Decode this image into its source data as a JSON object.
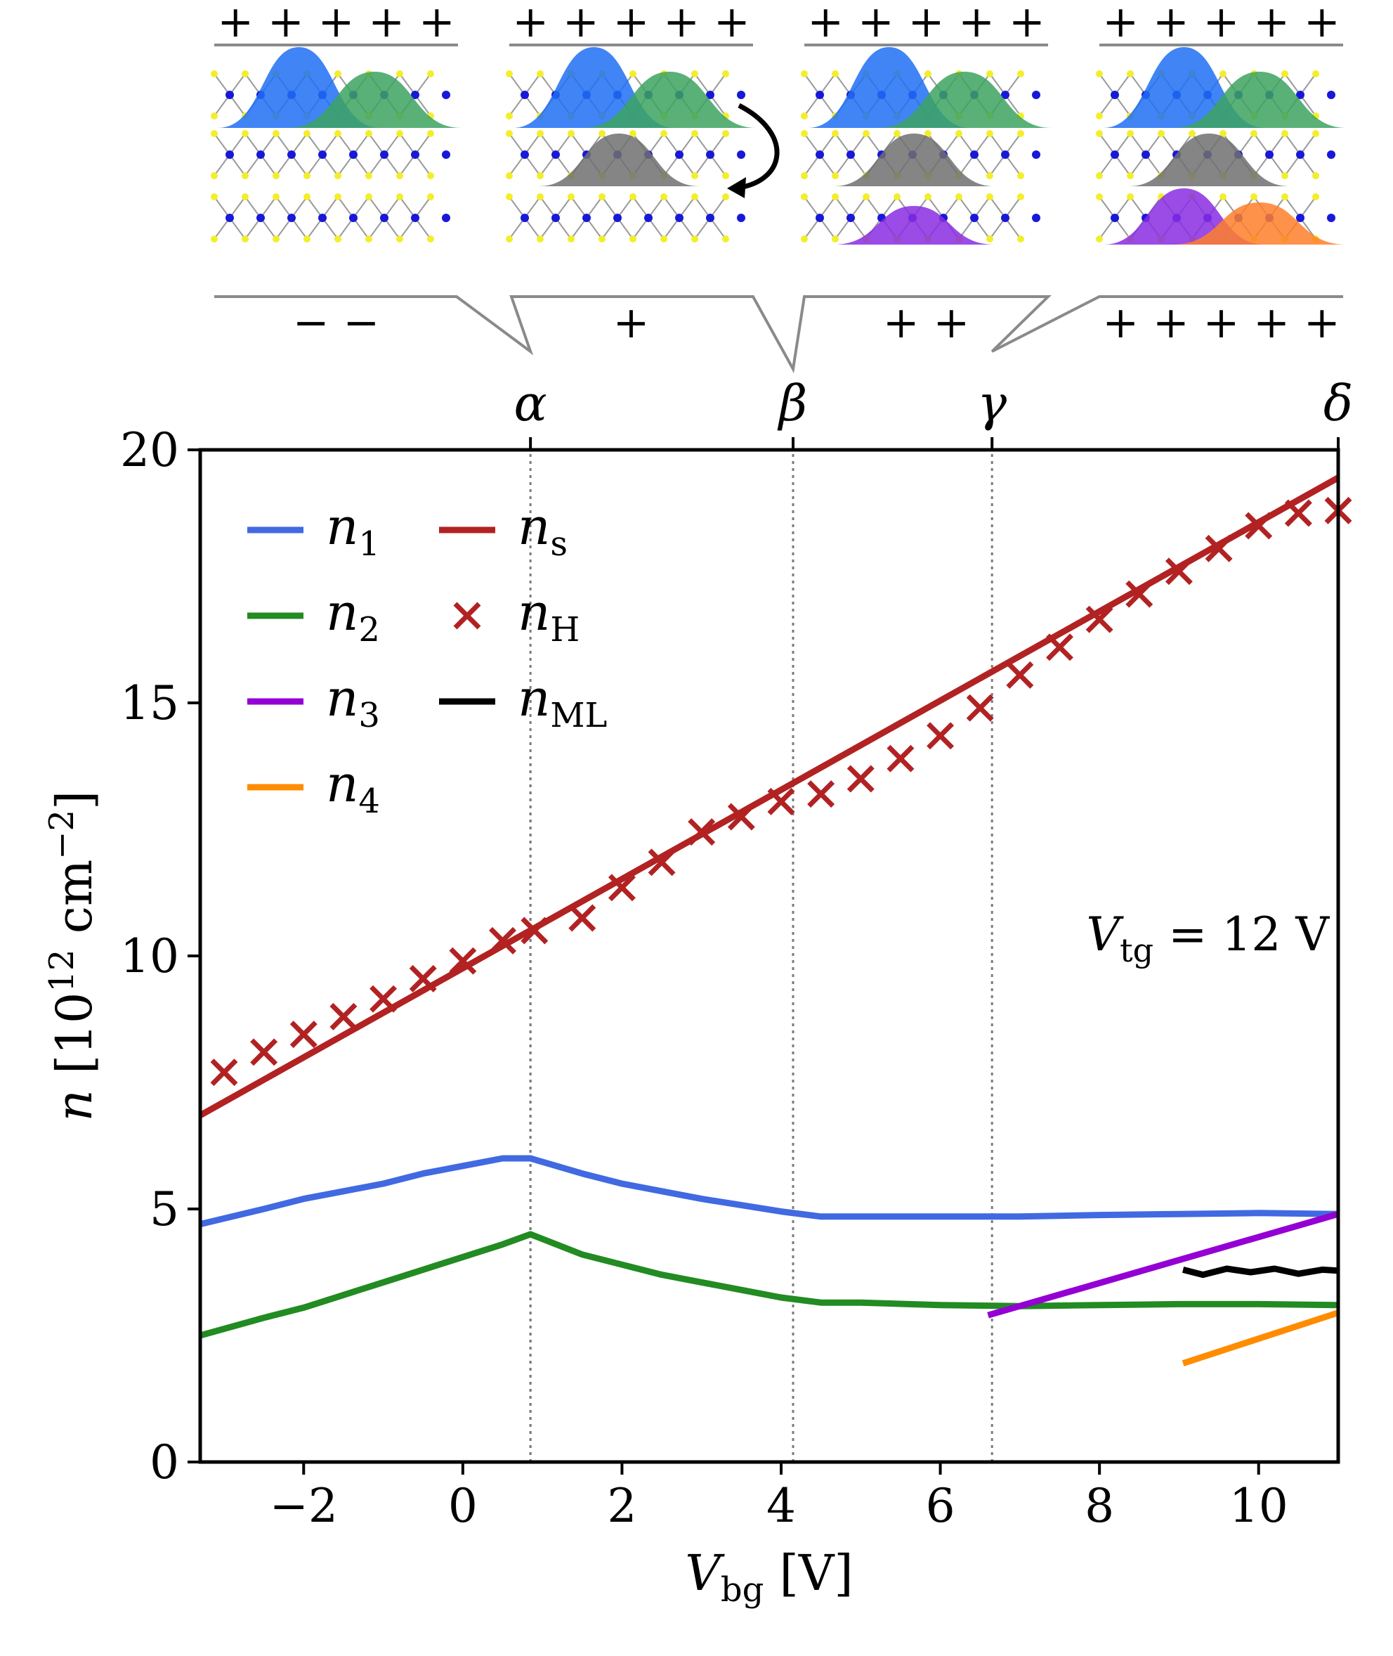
{
  "chart_data": {
    "type": "line",
    "title": "",
    "annotation": "V_tg = 12 V",
    "annotation_parts": {
      "var": "V",
      "sub": "tg",
      "rest": " = 12 V"
    },
    "xlabel": {
      "var": "V",
      "sub": "bg",
      "unit": " [V]"
    },
    "ylabel": {
      "var": "n",
      "unit": " [10",
      "exp": "12",
      "unit2": " cm",
      "exp2": "−2",
      "close": "]"
    },
    "xlim": [
      -3.3,
      11
    ],
    "ylim": [
      0,
      20
    ],
    "x_ticks": [
      -2,
      0,
      2,
      4,
      6,
      8,
      10
    ],
    "x_tick_labels": [
      "−2",
      "0",
      "2",
      "4",
      "6",
      "8",
      "10"
    ],
    "y_ticks": [
      0,
      5,
      10,
      15,
      20
    ],
    "y_tick_labels": [
      "0",
      "5",
      "10",
      "15",
      "20"
    ],
    "top_axis": {
      "ticks": [
        0.85,
        4.15,
        6.65,
        11
      ],
      "labels": [
        "α",
        "β",
        "γ",
        "δ"
      ]
    },
    "vlines": [
      {
        "x": 0.85,
        "y0": 0,
        "y1": 20
      },
      {
        "x": 4.15,
        "y0": 0,
        "y1": 20
      },
      {
        "x": 6.65,
        "y0": 0,
        "y1": 20
      },
      {
        "x": 0.85,
        "y0": 0,
        "y1": 14
      }
    ],
    "series": [
      {
        "name": "n_1",
        "sym": "n",
        "sub": "1",
        "color": "#4169e1",
        "kind": "line",
        "x": [
          -3.3,
          -2.5,
          -2,
          -1.5,
          -1,
          -0.5,
          0,
          0.5,
          0.85,
          1.5,
          2,
          3,
          4,
          4.5,
          5,
          6,
          7,
          8,
          9,
          10,
          11
        ],
        "y": [
          4.7,
          5.0,
          5.2,
          5.35,
          5.5,
          5.7,
          5.85,
          6.0,
          6.0,
          5.7,
          5.5,
          5.2,
          4.95,
          4.85,
          4.85,
          4.85,
          4.85,
          4.88,
          4.9,
          4.92,
          4.9
        ]
      },
      {
        "name": "n_2",
        "sym": "n",
        "sub": "2",
        "color": "#228b22",
        "kind": "line",
        "x": [
          -3.3,
          -2.5,
          -2,
          -1.5,
          -1,
          -0.5,
          0,
          0.5,
          0.85,
          1.5,
          2,
          2.5,
          3,
          3.5,
          4,
          4.5,
          5,
          6,
          7,
          8,
          9,
          10,
          11
        ],
        "y": [
          2.5,
          2.85,
          3.05,
          3.3,
          3.55,
          3.8,
          4.05,
          4.3,
          4.5,
          4.1,
          3.9,
          3.7,
          3.55,
          3.4,
          3.25,
          3.15,
          3.15,
          3.1,
          3.08,
          3.1,
          3.12,
          3.12,
          3.1
        ]
      },
      {
        "name": "n_3",
        "sym": "n",
        "sub": "3",
        "color": "#9400d3",
        "kind": "line",
        "x": [
          6.6,
          11
        ],
        "y": [
          2.9,
          4.9
        ]
      },
      {
        "name": "n_4",
        "sym": "n",
        "sub": "4",
        "color": "#ff8c00",
        "kind": "line",
        "x": [
          9.05,
          11
        ],
        "y": [
          1.95,
          2.95
        ]
      },
      {
        "name": "n_s",
        "sym": "n",
        "sub": "s",
        "color": "#b22222",
        "kind": "line",
        "x": [
          -3.3,
          11
        ],
        "y": [
          6.85,
          19.45
        ]
      },
      {
        "name": "n_H",
        "sym": "n",
        "sub": "H",
        "color": "#b22222",
        "kind": "markers",
        "x": [
          -3.0,
          -2.5,
          -2.0,
          -1.5,
          -1.0,
          -0.5,
          0.0,
          0.5,
          0.9,
          1.5,
          2.0,
          2.5,
          3.0,
          3.5,
          4.0,
          4.5,
          5.0,
          5.5,
          6.0,
          6.5,
          7.0,
          7.5,
          8.0,
          8.5,
          9.0,
          9.5,
          10.0,
          10.5,
          11.0
        ],
        "y": [
          7.7,
          8.1,
          8.45,
          8.8,
          9.15,
          9.55,
          9.9,
          10.3,
          10.5,
          10.75,
          11.35,
          11.85,
          12.45,
          12.75,
          13.05,
          13.2,
          13.5,
          13.9,
          14.35,
          14.9,
          15.55,
          16.1,
          16.65,
          17.15,
          17.6,
          18.05,
          18.5,
          18.75,
          18.8
        ]
      },
      {
        "name": "n_ML",
        "sym": "n",
        "sub": "ML",
        "color": "#000000",
        "kind": "line",
        "x": [
          9.05,
          9.3,
          9.6,
          9.9,
          10.2,
          10.5,
          10.8,
          11.0
        ],
        "y": [
          3.8,
          3.7,
          3.82,
          3.75,
          3.82,
          3.72,
          3.8,
          3.78
        ]
      }
    ],
    "legend_order": [
      [
        "n_1",
        "n_2",
        "n_3",
        "n_4"
      ],
      [
        "n_s",
        "n_H",
        "n_ML"
      ]
    ],
    "legend_position": "top-left",
    "schematic": {
      "panels": [
        {
          "top_charges": "+ + + + +",
          "bottom_charges": "− −",
          "layers": [
            [
              "blue",
              "green"
            ]
          ]
        },
        {
          "top_charges": "+ + + + +",
          "bottom_charges": "+",
          "layers": [
            [
              "blue",
              "green"
            ],
            [
              "gray"
            ]
          ]
        },
        {
          "top_charges": "+ + + + +",
          "bottom_charges": "+ +",
          "layers": [
            [
              "blue",
              "green"
            ],
            [
              "gray"
            ],
            [
              "purple"
            ]
          ]
        },
        {
          "top_charges": "+ + + + +",
          "bottom_charges": "+ + + + +",
          "layers": [
            [
              "blue",
              "green"
            ],
            [
              "gray"
            ],
            [
              "purple",
              "orange"
            ]
          ]
        }
      ],
      "colors": {
        "blue": "#1e6ff5",
        "green": "#3ca360",
        "gray": "#707070",
        "purple": "#8a2be2",
        "orange": "#ff7f2a",
        "atom_yellow": "#f3ee2a",
        "atom_blue": "#1818d8",
        "bond": "#9a9a9a",
        "bracket": "#8a8a8a"
      }
    }
  }
}
